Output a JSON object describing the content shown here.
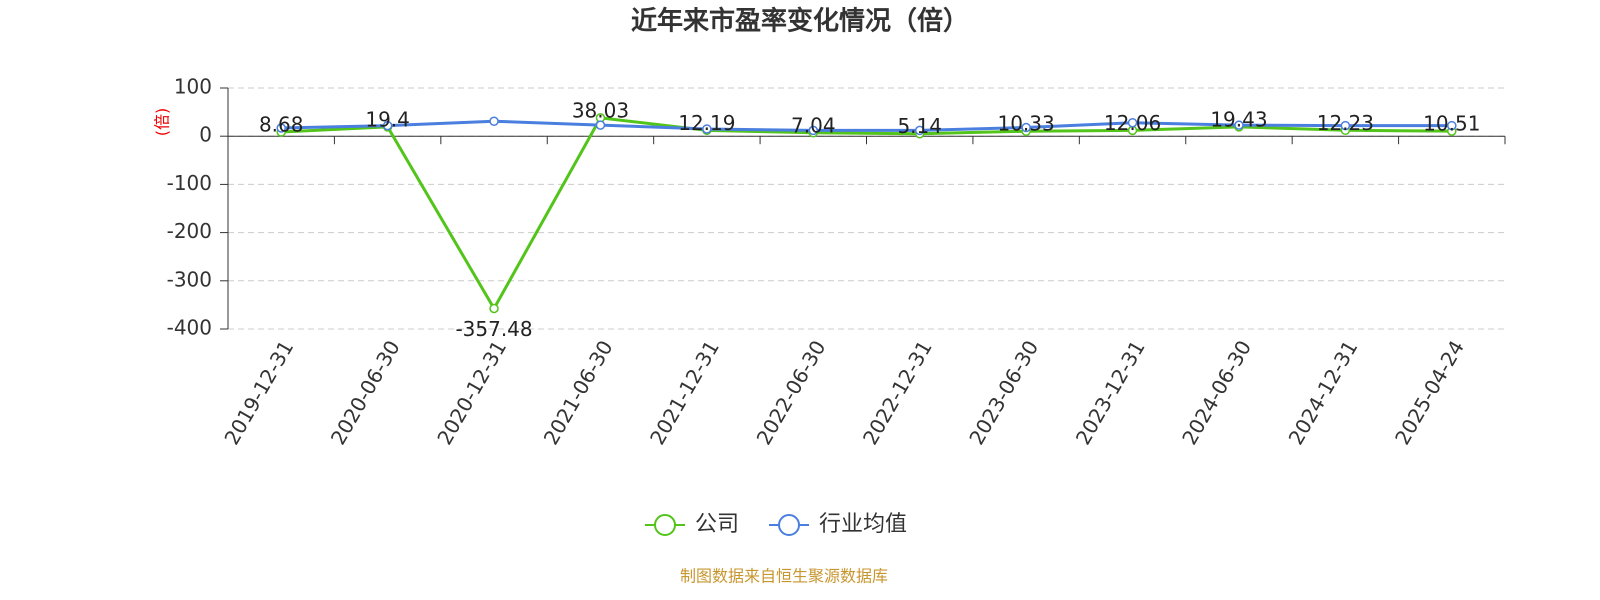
{
  "chart_data": {
    "type": "line",
    "title": "近年来市盈率变化情况（倍）",
    "y_axis_label": "(倍)",
    "source": "制图数据来自恒生聚源数据库",
    "categories": [
      "2019-12-31",
      "2020-06-30",
      "2020-12-31",
      "2021-06-30",
      "2021-12-31",
      "2022-06-30",
      "2022-12-31",
      "2023-06-30",
      "2023-12-31",
      "2024-06-30",
      "2024-12-31",
      "2025-04-24"
    ],
    "series": [
      {
        "name": "公司",
        "color": "#52c41a",
        "values": [
          8.68,
          19.4,
          -357.48,
          38.03,
          12.19,
          7.04,
          5.14,
          10.33,
          12.06,
          19.43,
          12.23,
          10.51
        ],
        "show_labels": true
      },
      {
        "name": "行业均值",
        "color": "#4a7fe0",
        "values": [
          17,
          22,
          31,
          23,
          15,
          12,
          12,
          18,
          28,
          23,
          22,
          22
        ],
        "show_labels": false
      }
    ],
    "ylim": [
      -400,
      100
    ],
    "yticks": [
      -400,
      -300,
      -200,
      -100,
      0,
      100
    ],
    "grid": true,
    "legend": "bottom"
  }
}
